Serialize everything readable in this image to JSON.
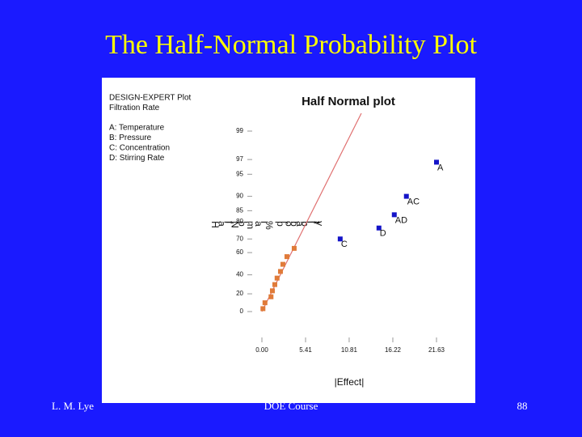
{
  "slide_title": "The Half-Normal Probability Plot",
  "footer": {
    "left": "L. M. Lye",
    "center": "DOE Course",
    "right": "88"
  },
  "chart_data": {
    "type": "scatter",
    "title": "Half Normal plot",
    "annotations": [
      "DESIGN-EXPERT Plot",
      "Filtration Rate",
      "A: Temperature",
      "B: Pressure",
      "C: Concentration",
      "D: Stirring Rate"
    ],
    "xlabel": "|Effect|",
    "ylabel": "Half Normal % probability",
    "yscale": "half-normal",
    "xlim": [
      0,
      21.63
    ],
    "ylim": [
      0,
      99
    ],
    "xticks": [
      {
        "value": 0,
        "label": "0.00"
      },
      5.41,
      10.81,
      16.22,
      21.63
    ],
    "yticks": [
      0,
      20,
      40,
      60,
      70,
      80,
      85,
      90,
      95,
      97,
      99
    ],
    "series": [
      {
        "color": "#e07b39",
        "x": [
          0.13,
          0.38,
          1.13,
          1.3,
          1.6,
          1.88,
          2.3,
          2.6,
          3.1,
          4.0
        ],
        "values": [
          3.3,
          10,
          16.7,
          23.3,
          30,
          36.7,
          43.3,
          50,
          56.7,
          63.3
        ]
      },
      {
        "color": "#1414c8",
        "x": [
          9.7,
          14.5,
          16.4,
          17.9,
          21.63
        ],
        "values": [
          70,
          76.7,
          83.3,
          90,
          96.7
        ],
        "labels": [
          "C",
          "D",
          "AD",
          "AC",
          "A"
        ]
      }
    ]
  }
}
